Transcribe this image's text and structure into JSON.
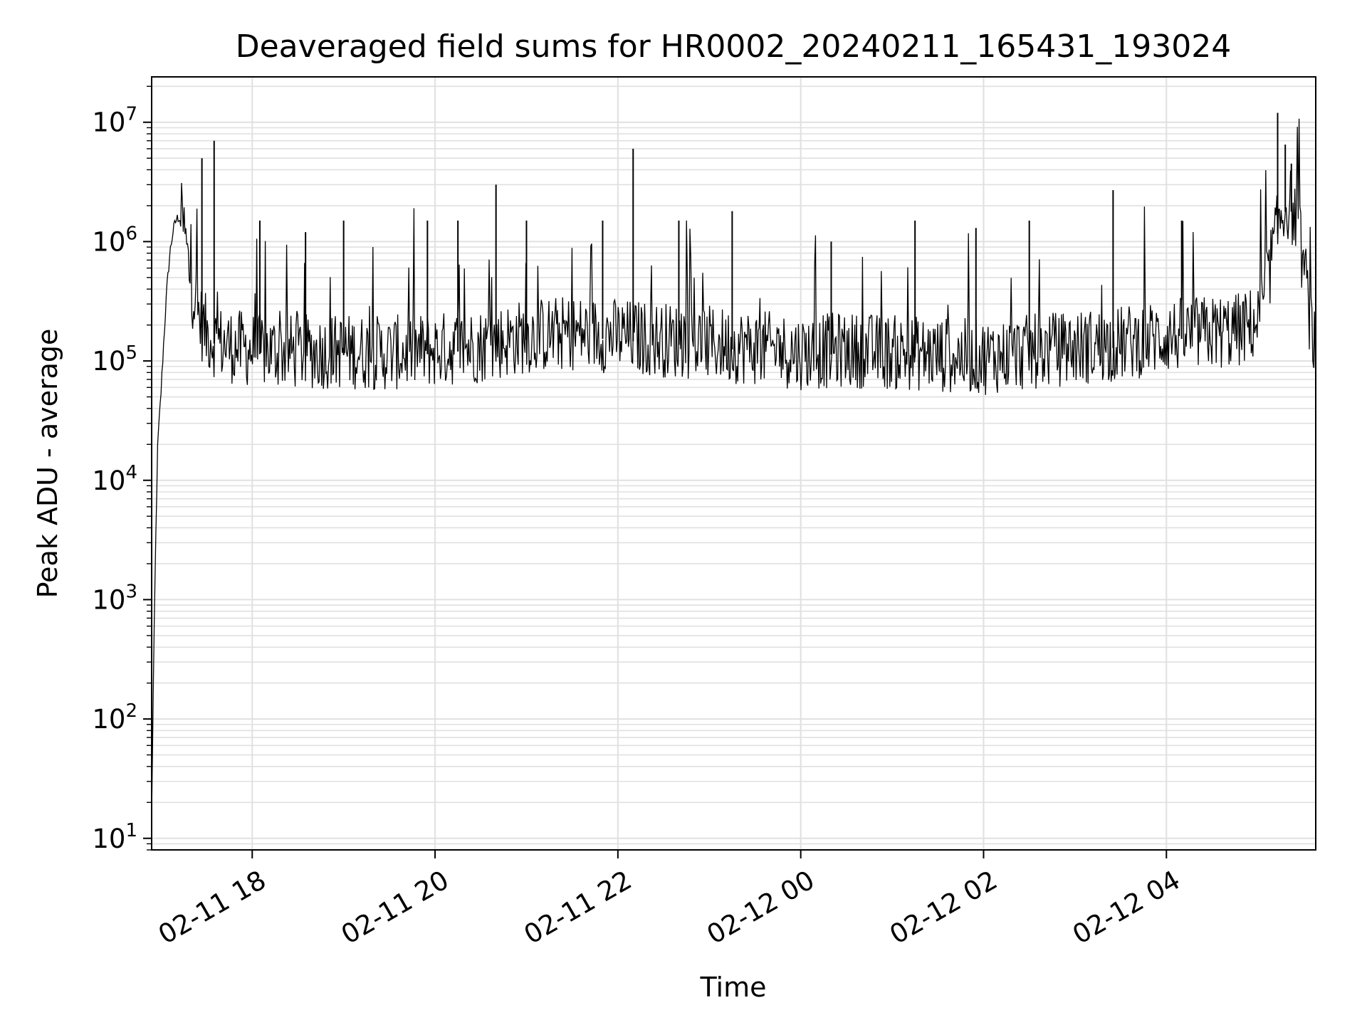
{
  "chart_data": {
    "type": "line",
    "title": "Deaveraged field sums for HR0002_20240211_165431_193024",
    "xlabel": "Time",
    "ylabel": "Peak ADU - average",
    "y_scale": "log",
    "ylim": [
      8,
      24000000
    ],
    "xlim": [
      "2024-02-11 16:54",
      "2024-02-12 05:38"
    ],
    "x_ticks": [
      {
        "value": "2024-02-11 18:00",
        "label": "02-11 18"
      },
      {
        "value": "2024-02-11 20:00",
        "label": "02-11 20"
      },
      {
        "value": "2024-02-11 22:00",
        "label": "02-11 22"
      },
      {
        "value": "2024-02-12 00:00",
        "label": "02-12 00"
      },
      {
        "value": "2024-02-12 02:00",
        "label": "02-12 02"
      },
      {
        "value": "2024-02-12 04:00",
        "label": "02-12 04"
      }
    ],
    "y_ticks": [
      {
        "value": 10,
        "base": "10",
        "exp": "1"
      },
      {
        "value": 100,
        "base": "10",
        "exp": "2"
      },
      {
        "value": 1000,
        "base": "10",
        "exp": "3"
      },
      {
        "value": 10000,
        "base": "10",
        "exp": "4"
      },
      {
        "value": 100000,
        "base": "10",
        "exp": "5"
      },
      {
        "value": 1000000,
        "base": "10",
        "exp": "6"
      },
      {
        "value": 10000000,
        "base": "10",
        "exp": "7"
      }
    ],
    "grid": true,
    "line_color": "#000000",
    "grid_color": "#e0e0e0",
    "series": [
      {
        "x": [
          "2024-02-11 16:54",
          "2024-02-11 16:55",
          "2024-02-11 16:56",
          "2024-02-11 16:57",
          "2024-02-11 16:58",
          "2024-02-11 17:00",
          "2024-02-11 17:02",
          "2024-02-11 17:04",
          "2024-02-11 17:06",
          "2024-02-11 17:08",
          "2024-02-11 17:10",
          "2024-02-11 17:12",
          "2024-02-11 17:14",
          "2024-02-11 17:16",
          "2024-02-11 17:18",
          "2024-02-11 17:20",
          "2024-02-11 17:23",
          "2024-02-11 17:26",
          "2024-02-11 17:30",
          "2024-02-11 17:35",
          "2024-02-11 17:40",
          "2024-02-11 17:45",
          "2024-02-11 17:52",
          "2024-02-11 18:00",
          "2024-02-11 18:30",
          "2024-02-11 19:00",
          "2024-02-11 19:30",
          "2024-02-11 20:00",
          "2024-02-11 20:30",
          "2024-02-11 21:00",
          "2024-02-11 21:30",
          "2024-02-11 22:00",
          "2024-02-11 22:30",
          "2024-02-11 23:00",
          "2024-02-11 23:30",
          "2024-02-12 00:00",
          "2024-02-12 00:30",
          "2024-02-12 01:00",
          "2024-02-12 01:30",
          "2024-02-12 02:00",
          "2024-02-12 02:30",
          "2024-02-12 03:00",
          "2024-02-12 03:30",
          "2024-02-12 04:00",
          "2024-02-12 04:30",
          "2024-02-12 04:50",
          "2024-02-12 05:00",
          "2024-02-12 05:05",
          "2024-02-12 05:10",
          "2024-02-12 05:15",
          "2024-02-12 05:20",
          "2024-02-12 05:25",
          "2024-02-12 05:30",
          "2024-02-12 05:35",
          "2024-02-12 05:38"
        ],
        "y": [
          15,
          150,
          1000,
          5000,
          20000,
          50000,
          150000,
          400000,
          800000,
          1200000,
          1500000,
          1600000,
          1400000,
          1000000,
          600000,
          400000,
          280000,
          200000,
          160000,
          140000,
          130000,
          125000,
          120000,
          115000,
          110000,
          112000,
          108000,
          115000,
          125000,
          150000,
          160000,
          150000,
          140000,
          130000,
          120000,
          110000,
          115000,
          110000,
          105000,
          100000,
          110000,
          120000,
          130000,
          150000,
          160000,
          170000,
          200000,
          350000,
          800000,
          1500000,
          2000000,
          1500000,
          600000,
          180000,
          120000
        ]
      }
    ],
    "spikes": [
      {
        "x": "2024-02-11 17:27",
        "y": 5000000
      },
      {
        "x": "2024-02-11 17:35",
        "y": 7000000
      },
      {
        "x": "2024-02-11 18:05",
        "y": 1500000
      },
      {
        "x": "2024-02-11 18:35",
        "y": 1200000
      },
      {
        "x": "2024-02-11 19:00",
        "y": 1500000
      },
      {
        "x": "2024-02-11 19:55",
        "y": 1500000
      },
      {
        "x": "2024-02-11 20:15",
        "y": 1500000
      },
      {
        "x": "2024-02-11 20:40",
        "y": 3000000
      },
      {
        "x": "2024-02-11 21:00",
        "y": 1500000
      },
      {
        "x": "2024-02-11 21:50",
        "y": 1500000
      },
      {
        "x": "2024-02-11 22:10",
        "y": 6000000
      },
      {
        "x": "2024-02-11 22:40",
        "y": 1500000
      },
      {
        "x": "2024-02-11 23:15",
        "y": 1800000
      },
      {
        "x": "2024-02-12 00:20",
        "y": 1000000
      },
      {
        "x": "2024-02-12 01:15",
        "y": 1500000
      },
      {
        "x": "2024-02-12 01:55",
        "y": 1300000
      },
      {
        "x": "2024-02-12 02:30",
        "y": 1500000
      },
      {
        "x": "2024-02-12 03:25",
        "y": 2700000
      },
      {
        "x": "2024-02-12 04:10",
        "y": 1500000
      },
      {
        "x": "2024-02-12 05:13",
        "y": 12000000
      },
      {
        "x": "2024-02-12 05:18",
        "y": 6500000
      },
      {
        "x": "2024-02-12 05:22",
        "y": 4500000
      }
    ]
  }
}
